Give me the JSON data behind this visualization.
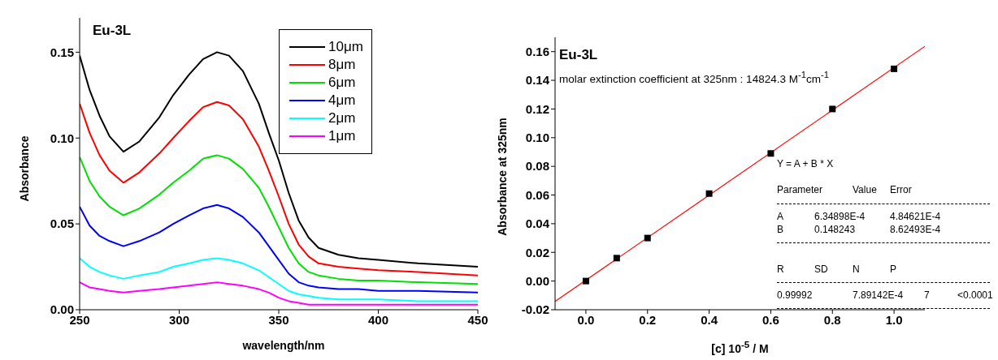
{
  "chart_data": [
    {
      "type": "line",
      "title": "Eu-3L",
      "xlabel": "wavelength/nm",
      "ylabel": "Absorbance",
      "xlim": [
        250,
        450
      ],
      "xticks": [
        250,
        300,
        350,
        400,
        450
      ],
      "ylim": [
        0,
        0.17
      ],
      "yticks": [
        {
          "value": 0,
          "label": "0.00"
        },
        {
          "value": 0.05,
          "label": "0.05"
        },
        {
          "value": 0.1,
          "label": "0.10"
        },
        {
          "value": 0.15,
          "label": "0.15"
        }
      ],
      "legend": "top right",
      "grid": false,
      "marker": "none",
      "line_style": "solid",
      "x": [
        250,
        255,
        260,
        265,
        272,
        280,
        290,
        297,
        305,
        312,
        319,
        325,
        332,
        340,
        345,
        350,
        355,
        360,
        365,
        370,
        380,
        390,
        400,
        420,
        450
      ],
      "series": [
        {
          "name": "10μm",
          "color": "#000000",
          "values": [
            0.148,
            0.128,
            0.113,
            0.101,
            0.092,
            0.098,
            0.112,
            0.125,
            0.137,
            0.146,
            0.15,
            0.148,
            0.139,
            0.12,
            0.103,
            0.087,
            0.068,
            0.052,
            0.042,
            0.036,
            0.032,
            0.03,
            0.029,
            0.027,
            0.025
          ]
        },
        {
          "name": "8μm",
          "color": "#ff0000",
          "values": [
            0.12,
            0.103,
            0.09,
            0.081,
            0.074,
            0.08,
            0.091,
            0.1,
            0.11,
            0.118,
            0.121,
            0.119,
            0.111,
            0.095,
            0.081,
            0.066,
            0.05,
            0.038,
            0.031,
            0.027,
            0.025,
            0.024,
            0.023,
            0.022,
            0.02
          ]
        },
        {
          "name": "6μm",
          "color": "#00e000",
          "values": [
            0.089,
            0.075,
            0.066,
            0.06,
            0.055,
            0.059,
            0.067,
            0.074,
            0.081,
            0.088,
            0.09,
            0.088,
            0.082,
            0.071,
            0.06,
            0.048,
            0.036,
            0.027,
            0.022,
            0.02,
            0.018,
            0.017,
            0.017,
            0.016,
            0.015
          ]
        },
        {
          "name": "4μm",
          "color": "#0000ff",
          "values": [
            0.06,
            0.049,
            0.043,
            0.04,
            0.037,
            0.04,
            0.045,
            0.05,
            0.055,
            0.059,
            0.061,
            0.059,
            0.054,
            0.045,
            0.037,
            0.029,
            0.021,
            0.016,
            0.014,
            0.013,
            0.012,
            0.012,
            0.011,
            0.011,
            0.01
          ]
        },
        {
          "name": "2μm",
          "color": "#00ffff",
          "values": [
            0.03,
            0.025,
            0.022,
            0.02,
            0.018,
            0.02,
            0.022,
            0.025,
            0.027,
            0.029,
            0.03,
            0.029,
            0.027,
            0.023,
            0.019,
            0.015,
            0.011,
            0.009,
            0.008,
            0.007,
            0.006,
            0.006,
            0.006,
            0.005,
            0.005
          ]
        },
        {
          "name": "1μm",
          "color": "#ff00ff",
          "values": [
            0.016,
            0.013,
            0.012,
            0.011,
            0.01,
            0.011,
            0.012,
            0.013,
            0.014,
            0.015,
            0.016,
            0.015,
            0.014,
            0.012,
            0.01,
            0.007,
            0.005,
            0.004,
            0.003,
            0.003,
            0.003,
            0.003,
            0.003,
            0.003,
            0.003
          ]
        }
      ]
    },
    {
      "type": "scatter",
      "title": "Eu-3L",
      "xlabel": "[c] 10$^{-5}$ / M",
      "ylabel": "Absorbance at 325nm",
      "xlim": [
        -0.1,
        1.1
      ],
      "xticks": [
        {
          "value": 0,
          "label": "0.0"
        },
        {
          "value": 0.2,
          "label": "0.2"
        },
        {
          "value": 0.4,
          "label": "0.4"
        },
        {
          "value": 0.6,
          "label": "0.6"
        },
        {
          "value": 0.8,
          "label": "0.8"
        },
        {
          "value": 1,
          "label": "1.0"
        }
      ],
      "ylim": [
        -0.02,
        0.17
      ],
      "yticks": [
        {
          "value": -0.02,
          "label": "-0.02"
        },
        {
          "value": 0,
          "label": "0.00"
        },
        {
          "value": 0.02,
          "label": "0.02"
        },
        {
          "value": 0.04,
          "label": "0.04"
        },
        {
          "value": 0.06,
          "label": "0.06"
        },
        {
          "value": 0.08,
          "label": "0.08"
        },
        {
          "value": 0.1,
          "label": "0.10"
        },
        {
          "value": 0.12,
          "label": "0.12"
        },
        {
          "value": 0.14,
          "label": "0.14"
        },
        {
          "value": 0.16,
          "label": "0.16"
        }
      ],
      "grid": false,
      "legend": false,
      "series": [
        {
          "color": "#000000",
          "marker": "square",
          "x": [
            0,
            0.1,
            0.2,
            0.4,
            0.6,
            0.8,
            1.0
          ],
          "values": [
            0,
            0.016,
            0.03,
            0.061,
            0.089,
            0.12,
            0.148
          ]
        },
        {
          "type": "line",
          "color": "#ff0000",
          "marker": "none",
          "x": [
            -0.1,
            1.1
          ],
          "values": [
            -0.0142,
            0.1637
          ]
        }
      ],
      "annotations": [
        "molar extinction coefficient at 325nm : 14824.3 M$^{-1}$cm$^{-1}$",
        "Y = A + B * X",
        "Parameter",
        "Value",
        "Error",
        "A",
        "6.34898E-4",
        "4.84621E-4",
        "B",
        "0.148243",
        "8.62493E-4",
        "R",
        "SD",
        "N",
        "P",
        "0.99992",
        "7.89142E-4",
        "7",
        "<0.0001"
      ]
    }
  ]
}
